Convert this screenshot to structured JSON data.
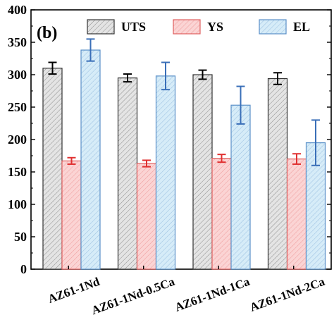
{
  "panel_label": "(b)",
  "chart_data": {
    "type": "bar",
    "categories": [
      "AZ61-1Nd",
      "AZ61-1Nd-0.5Ca",
      "AZ61-1Nd-1Ca",
      "AZ61-1Nd-2Ca"
    ],
    "series": [
      {
        "name": "UTS",
        "values": [
          310,
          295,
          300,
          294
        ],
        "errors": [
          9,
          6,
          7,
          9
        ],
        "fill": "#e4e4e4",
        "stroke": "#333333",
        "error_color": "#000000"
      },
      {
        "name": "YS",
        "values": [
          167,
          163,
          171,
          170
        ],
        "errors": [
          5,
          5,
          6,
          8
        ],
        "fill": "#fbd4d4",
        "stroke": "#e06060",
        "error_color": "#e03030"
      },
      {
        "name": "EL",
        "values": [
          338,
          298,
          253,
          195
        ],
        "errors": [
          17,
          21,
          29,
          35
        ],
        "fill": "#d6ecf8",
        "stroke": "#5a90c8",
        "error_color": "#3a6fb8"
      }
    ],
    "ylim": [
      0,
      400
    ],
    "yticks": [
      0,
      50,
      100,
      150,
      200,
      250,
      300,
      350,
      400
    ],
    "xlabel": "",
    "ylabel": "",
    "legend_position": "top",
    "grid": false,
    "fill_pattern": "hatched"
  }
}
